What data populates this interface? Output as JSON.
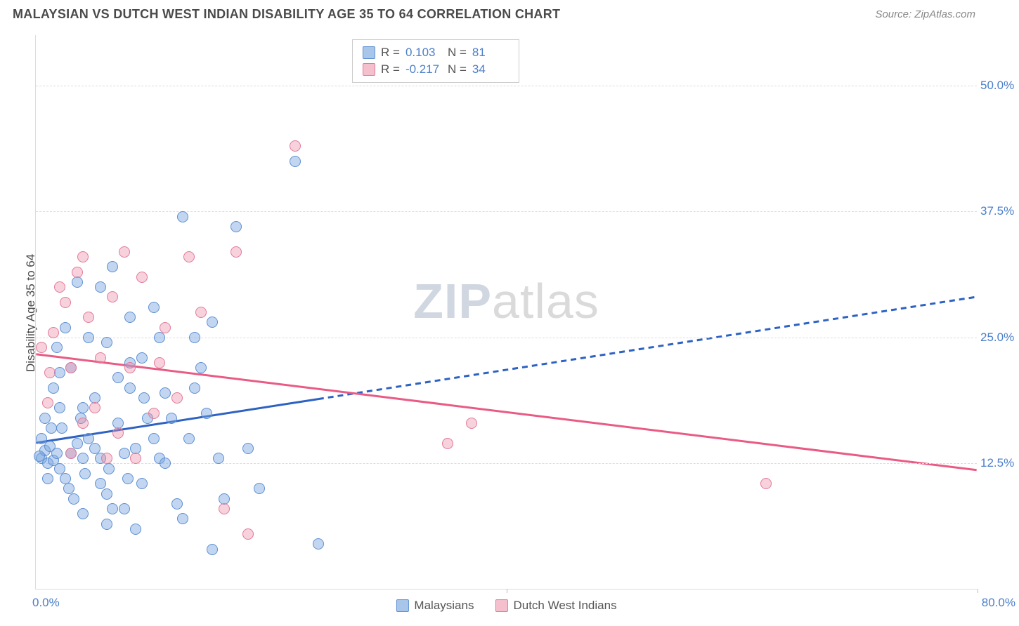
{
  "title": "MALAYSIAN VS DUTCH WEST INDIAN DISABILITY AGE 35 TO 64 CORRELATION CHART",
  "source": "Source: ZipAtlas.com",
  "ylabel": "Disability Age 35 to 64",
  "watermark": {
    "zip": "ZIP",
    "atlas": "atlas"
  },
  "chart": {
    "type": "scatter",
    "background_color": "#ffffff",
    "grid_color": "#dcdcdc",
    "xlim": [
      0,
      80
    ],
    "ylim": [
      0,
      55
    ],
    "y_gridlines": [
      12.5,
      25.0,
      37.5,
      50.0
    ],
    "y_tick_labels": [
      "12.5%",
      "25.0%",
      "37.5%",
      "50.0%"
    ],
    "x_ticks": [
      0,
      40,
      80
    ],
    "x_left_label": "0.0%",
    "x_right_label": "80.0%",
    "axis_label_color": "#4b7fc9",
    "axis_label_fontsize": 17,
    "marker_radius": 8,
    "marker_border_width": 1.5,
    "series": [
      {
        "name": "Malaysians",
        "fill": "rgba(120,165,225,0.45)",
        "stroke": "#5d8fd1",
        "swatch_fill": "#a8c6ea",
        "swatch_stroke": "#5d8fd1",
        "R": "0.103",
        "N": "81",
        "trend": {
          "x1": 0,
          "y1": 14.5,
          "x2": 80,
          "y2": 29,
          "solid_until_x": 24,
          "color": "#2d62c2",
          "width": 3,
          "dash": "8,6"
        },
        "points": [
          [
            0.5,
            13.0
          ],
          [
            1.0,
            12.5
          ],
          [
            0.8,
            13.8
          ],
          [
            1.2,
            14.2
          ],
          [
            1.5,
            12.8
          ],
          [
            0.3,
            13.2
          ],
          [
            1.8,
            13.5
          ],
          [
            2.0,
            12.0
          ],
          [
            2.5,
            11.0
          ],
          [
            3.0,
            13.5
          ],
          [
            3.5,
            14.5
          ],
          [
            2.2,
            16.0
          ],
          [
            2.8,
            10.0
          ],
          [
            3.2,
            9.0
          ],
          [
            4.0,
            13.0
          ],
          [
            4.5,
            15.0
          ],
          [
            5.0,
            14.0
          ],
          [
            5.5,
            13.0
          ],
          [
            6.0,
            9.5
          ],
          [
            6.5,
            8.0
          ],
          [
            7.0,
            16.5
          ],
          [
            7.5,
            13.5
          ],
          [
            8.0,
            20.0
          ],
          [
            8.5,
            14.0
          ],
          [
            9.0,
            10.5
          ],
          [
            9.5,
            17.0
          ],
          [
            10.0,
            28.0
          ],
          [
            10.5,
            13.0
          ],
          [
            11.0,
            19.5
          ],
          [
            12.0,
            8.5
          ],
          [
            12.5,
            37.0
          ],
          [
            13.0,
            15.0
          ],
          [
            13.5,
            25.0
          ],
          [
            14.0,
            22.0
          ],
          [
            15.0,
            26.5
          ],
          [
            15.5,
            13.0
          ],
          [
            16.0,
            9.0
          ],
          [
            17.0,
            36.0
          ],
          [
            18.0,
            14.0
          ],
          [
            19.0,
            10.0
          ],
          [
            5.5,
            30.0
          ],
          [
            6.0,
            24.5
          ],
          [
            7.0,
            21.0
          ],
          [
            8.0,
            27.0
          ],
          [
            3.0,
            22.0
          ],
          [
            4.0,
            18.0
          ],
          [
            4.5,
            25.0
          ],
          [
            6.5,
            32.0
          ],
          [
            2.0,
            18.0
          ],
          [
            1.5,
            20.0
          ],
          [
            9.0,
            23.0
          ],
          [
            10.0,
            15.0
          ],
          [
            11.5,
            17.0
          ],
          [
            1.0,
            11.0
          ],
          [
            0.5,
            15.0
          ],
          [
            22.0,
            42.5
          ],
          [
            24.0,
            4.5
          ],
          [
            12.5,
            7.0
          ],
          [
            4.0,
            7.5
          ],
          [
            6.0,
            6.5
          ],
          [
            8.5,
            6.0
          ],
          [
            3.5,
            30.5
          ],
          [
            2.5,
            26.0
          ],
          [
            1.8,
            24.0
          ],
          [
            7.5,
            8.0
          ],
          [
            13.5,
            20.0
          ],
          [
            14.5,
            17.5
          ],
          [
            5.0,
            19.0
          ],
          [
            2.0,
            21.5
          ],
          [
            0.8,
            17.0
          ],
          [
            1.3,
            16.0
          ],
          [
            4.2,
            11.5
          ],
          [
            3.8,
            17.0
          ],
          [
            6.2,
            12.0
          ],
          [
            7.8,
            11.0
          ],
          [
            9.2,
            19.0
          ],
          [
            11.0,
            12.5
          ],
          [
            15.0,
            4.0
          ],
          [
            10.5,
            25.0
          ],
          [
            8.0,
            22.5
          ],
          [
            5.5,
            10.5
          ]
        ]
      },
      {
        "name": "Dutch West Indians",
        "fill": "rgba(235,140,165,0.40)",
        "stroke": "#e27a9a",
        "swatch_fill": "#f5c0ce",
        "swatch_stroke": "#e27a9a",
        "R": "-0.217",
        "N": "34",
        "trend": {
          "x1": 0,
          "y1": 23.3,
          "x2": 80,
          "y2": 11.8,
          "solid_until_x": 80,
          "color": "#e95b84",
          "width": 3,
          "dash": ""
        },
        "points": [
          [
            0.5,
            24.0
          ],
          [
            1.0,
            18.5
          ],
          [
            1.5,
            25.5
          ],
          [
            2.0,
            30.0
          ],
          [
            2.5,
            28.5
          ],
          [
            3.0,
            22.0
          ],
          [
            3.5,
            31.5
          ],
          [
            4.0,
            16.5
          ],
          [
            4.5,
            27.0
          ],
          [
            5.0,
            18.0
          ],
          [
            5.5,
            23.0
          ],
          [
            6.0,
            13.0
          ],
          [
            6.5,
            29.0
          ],
          [
            7.0,
            15.5
          ],
          [
            7.5,
            33.5
          ],
          [
            8.0,
            22.0
          ],
          [
            9.0,
            31.0
          ],
          [
            10.0,
            17.5
          ],
          [
            11.0,
            26.0
          ],
          [
            12.0,
            19.0
          ],
          [
            13.0,
            33.0
          ],
          [
            14.0,
            27.5
          ],
          [
            16.0,
            8.0
          ],
          [
            17.0,
            33.5
          ],
          [
            18.0,
            5.5
          ],
          [
            10.5,
            22.5
          ],
          [
            4.0,
            33.0
          ],
          [
            22.0,
            44.0
          ],
          [
            35.0,
            14.5
          ],
          [
            37.0,
            16.5
          ],
          [
            62.0,
            10.5
          ],
          [
            3.0,
            13.5
          ],
          [
            1.2,
            21.5
          ],
          [
            8.5,
            13.0
          ]
        ]
      }
    ]
  },
  "legend": {
    "series1": "Malaysians",
    "series2": "Dutch West Indians"
  }
}
